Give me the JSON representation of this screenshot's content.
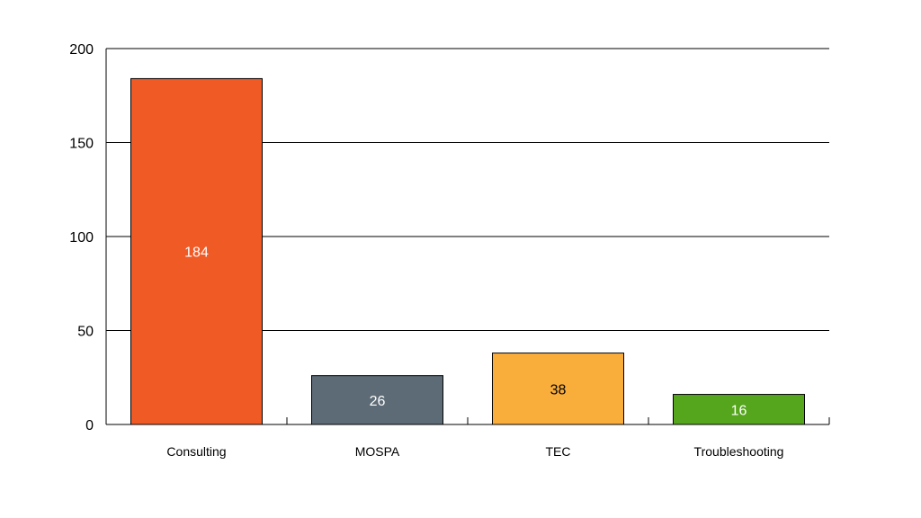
{
  "chart_data": {
    "type": "bar",
    "categories": [
      "Consulting",
      "MOSPA",
      "TEC",
      "Troubleshooting"
    ],
    "values": [
      184,
      26,
      38,
      16
    ],
    "value_labels": [
      "184",
      "26",
      "38",
      "16"
    ],
    "colors": [
      "#f05a25",
      "#5d6b76",
      "#f9ae3c",
      "#55a61d"
    ],
    "label_colors": [
      "#ffffff",
      "#ffffff",
      "#000000",
      "#ffffff"
    ],
    "title": "",
    "xlabel": "",
    "ylabel": "",
    "ylim": [
      0,
      200
    ],
    "yticks": [
      0,
      50,
      100,
      150,
      200
    ],
    "ytick_labels": [
      "0",
      "50",
      "100",
      "150",
      "200"
    ],
    "grid": true,
    "legend": "none"
  }
}
